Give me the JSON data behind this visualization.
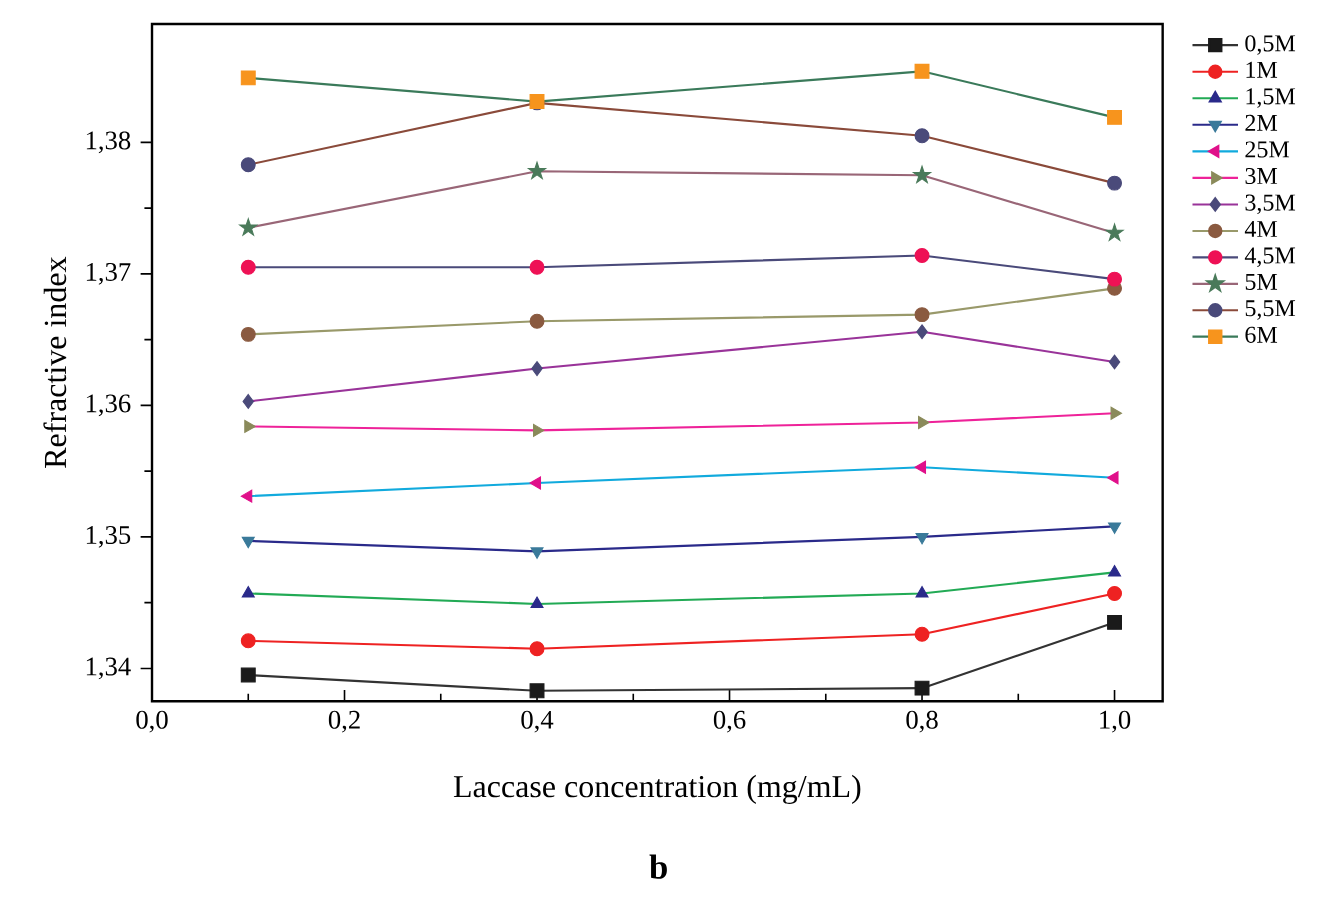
{
  "chart_data": {
    "type": "line",
    "xlabel": "Laccase concentration  (mg/mL)",
    "ylabel": "Refractive index",
    "annotations": [
      "b"
    ],
    "x": [
      0.1,
      0.4,
      0.8,
      1.0
    ],
    "xlim": [
      0,
      1.05
    ],
    "ylim": [
      1.3375,
      1.389
    ],
    "xticks": [
      {
        "value": 0.0,
        "label": "0,0"
      },
      {
        "value": 0.2,
        "label": "0,2"
      },
      {
        "value": 0.4,
        "label": "0,4"
      },
      {
        "value": 0.6,
        "label": "0,6"
      },
      {
        "value": 0.8,
        "label": "0,8"
      },
      {
        "value": 1.0,
        "label": "1,0"
      }
    ],
    "yticks": [
      {
        "value": 1.34,
        "label": "1,34"
      },
      {
        "value": 1.35,
        "label": "1,35"
      },
      {
        "value": 1.36,
        "label": "1,36"
      },
      {
        "value": 1.37,
        "label": "1,37"
      },
      {
        "value": 1.38,
        "label": "1,38"
      }
    ],
    "legend": "right",
    "grid": false,
    "line_style": "solid",
    "series": [
      {
        "name": "0,5M",
        "color": "#333333",
        "colors": [
          "#1a1a1a",
          "#1a1a1a",
          "#1a1a1a",
          "#1a1a1a"
        ],
        "marker": "square",
        "values": [
          1.3395,
          1.3383,
          1.3385,
          1.3435
        ]
      },
      {
        "name": "1M",
        "color": "#ee2222",
        "colors": [
          "#ee2222",
          "#ee2222",
          "#ee2222",
          "#ee2222"
        ],
        "marker": "circle",
        "values": [
          1.3421,
          1.3415,
          1.3426,
          1.3457
        ]
      },
      {
        "name": "1,5M",
        "color": "#22aa55",
        "colors": [
          "#2a2a8a",
          "#2a2a8a",
          "#2a2a8a",
          "#2a2a8a"
        ],
        "marker": "triangle",
        "values": [
          1.3457,
          1.3449,
          1.3457,
          1.3473
        ]
      },
      {
        "name": "2M",
        "color": "#2a2a8a",
        "colors": [
          "#3a7a9a",
          "#3a7a9a",
          "#3a7a9a",
          "#3a7a9a"
        ],
        "marker": "triangle-down",
        "values": [
          1.3497,
          1.3489,
          1.35,
          1.3508
        ]
      },
      {
        "name": "25M",
        "color": "#11aadd",
        "colors": [
          "#e0108a",
          "#e0108a",
          "#e0108a",
          "#e0108a"
        ],
        "marker": "triangle-left",
        "values": [
          1.3531,
          1.3541,
          1.3553,
          1.3545
        ]
      },
      {
        "name": "3M",
        "color": "#ee2299",
        "colors": [
          "#8a8a5a",
          "#8a8a5a",
          "#8a8a5a",
          "#8a8a5a"
        ],
        "marker": "triangle-right",
        "values": [
          1.3584,
          1.3581,
          1.3587,
          1.3594
        ]
      },
      {
        "name": "3,5M",
        "color": "#993399",
        "colors": [
          "#4a4a7a",
          "#4a4a7a",
          "#4a4a7a",
          "#4a4a7a"
        ],
        "marker": "diamond",
        "values": [
          1.3603,
          1.3628,
          1.3656,
          1.3633
        ]
      },
      {
        "name": "4M",
        "color": "#99996a",
        "colors": [
          "#8a5a40",
          "#8a5a40",
          "#8a5a40",
          "#8a5a40"
        ],
        "marker": "circle",
        "values": [
          1.3654,
          1.3664,
          1.3669,
          1.3689
        ]
      },
      {
        "name": "4,5M",
        "color": "#4a4a7a",
        "colors": [
          "#ee1155",
          "#ee1155",
          "#ee1155",
          "#ee1155"
        ],
        "marker": "circle",
        "values": [
          1.3705,
          1.3705,
          1.3714,
          1.3696
        ]
      },
      {
        "name": "5M",
        "color": "#996677",
        "colors": [
          "#4a7a5a",
          "#4a7a5a",
          "#4a7a5a",
          "#4a7a5a"
        ],
        "marker": "star",
        "values": [
          1.3735,
          1.3778,
          1.3775,
          1.3731
        ]
      },
      {
        "name": "5,5M",
        "color": "#8a4a3a",
        "colors": [
          "#4a4a7a",
          "#4a4a7a",
          "#4a4a7a",
          "#4a4a7a"
        ],
        "marker": "circle",
        "values": [
          1.3783,
          1.383,
          1.3805,
          1.3769
        ]
      },
      {
        "name": "6M",
        "color": "#3a7a5a",
        "colors": [
          "#f7941d",
          "#f7941d",
          "#f7941d",
          "#f7941d"
        ],
        "marker": "square",
        "values": [
          1.3849,
          1.3831,
          1.3854,
          1.3819
        ]
      }
    ]
  }
}
